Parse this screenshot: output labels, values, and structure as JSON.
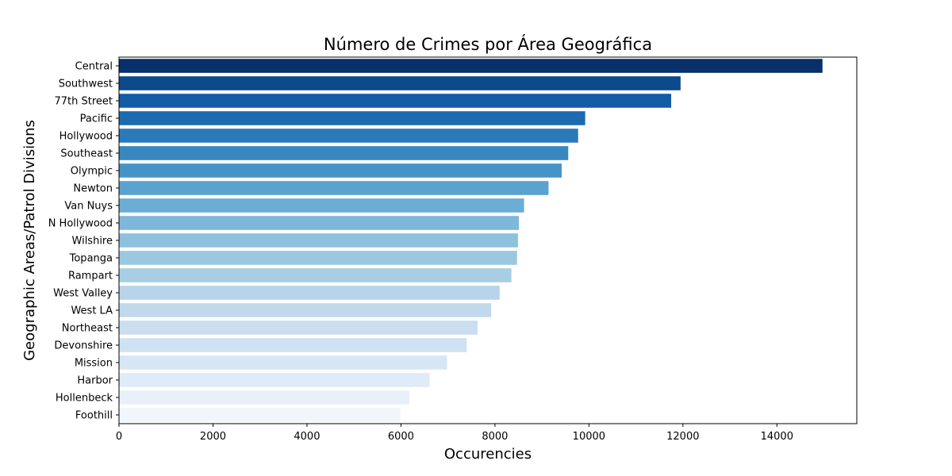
{
  "chart_data": {
    "type": "bar",
    "orientation": "horizontal",
    "title": "Número de Crimes por Área Geográfica",
    "xlabel": "Occurencies",
    "ylabel": "Geographic Areas/Patrol Divisions",
    "xlim": [
      0,
      15700
    ],
    "xticks": [
      0,
      2000,
      4000,
      6000,
      8000,
      10000,
      12000,
      14000
    ],
    "grid": false,
    "legend": "none",
    "palette": "Blues (dark to light)",
    "categories": [
      "Central",
      "Southwest",
      "77th Street",
      "Pacific",
      "Hollywood",
      "Southeast",
      "Olympic",
      "Newton",
      "Van Nuys",
      "N Hollywood",
      "Wilshire",
      "Topanga",
      "Rampart",
      "West Valley",
      "West LA",
      "Northeast",
      "Devonshire",
      "Mission",
      "Harbor",
      "Hollenbeck",
      "Foothill"
    ],
    "values": [
      14970,
      11950,
      11750,
      9920,
      9770,
      9560,
      9420,
      9140,
      8620,
      8510,
      8490,
      8470,
      8350,
      8100,
      7920,
      7630,
      7400,
      6980,
      6610,
      6180,
      5990
    ],
    "colors": [
      "#08306b",
      "#0c4a8c",
      "#115ca5",
      "#1c6bb1",
      "#2a7aba",
      "#3787c0",
      "#4694c7",
      "#5aa2cf",
      "#6aadd5",
      "#7db8da",
      "#8dc1dd",
      "#9ac8e0",
      "#a8cee4",
      "#b7d4ea",
      "#c1d9ed",
      "#cadef0",
      "#d0e1f2",
      "#d6e6f4",
      "#dfebf7",
      "#e8f1fa",
      "#f0f6fc"
    ]
  }
}
